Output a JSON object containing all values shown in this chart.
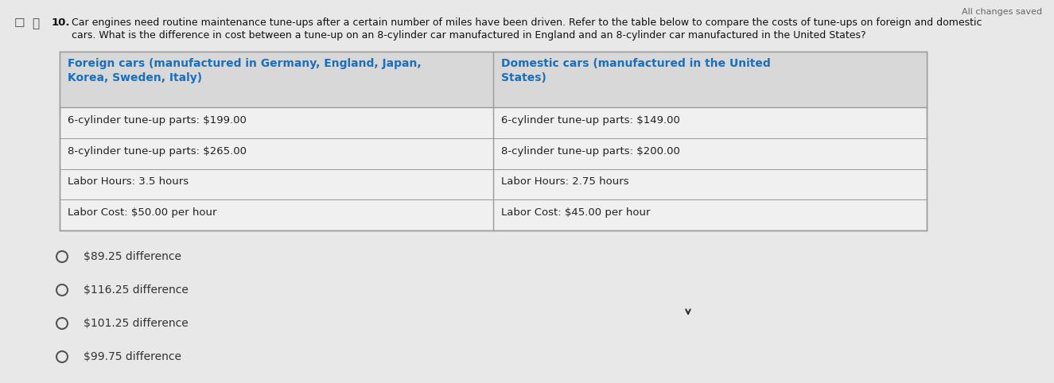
{
  "all_changes_saved": "All changes saved",
  "question_number": "10.",
  "question_text_line1": "Car engines need routine maintenance tune-ups after a certain number of miles have been driven. Refer to the table below to compare the costs of tune-ups on foreign and domestic",
  "question_text_line2": "cars. What is the difference in cost between a tune-up on an 8-cylinder car manufactured in England and an 8-cylinder car manufactured in the United States?",
  "table_header_left": "Foreign cars (manufactured in Germany, England, Japan,\nKorea, Sweden, Italy)",
  "table_header_right": "Domestic cars (manufactured in the United\nStates)",
  "table_rows_left": [
    "6-cylinder tune-up parts: $199.00",
    "8-cylinder tune-up parts: $265.00",
    "Labor Hours: 3.5 hours",
    "Labor Cost: $50.00 per hour"
  ],
  "table_rows_right": [
    "6-cylinder tune-up parts: $149.00",
    "8-cylinder tune-up parts: $200.00",
    "Labor Hours: 2.75 hours",
    "Labor Cost: $45.00 per hour"
  ],
  "answer_choices": [
    "$89.25 difference",
    "$116.25 difference",
    "$101.25 difference",
    "$99.75 difference"
  ],
  "bg_color": "#e8e8e8",
  "table_bg_color": "#f0f0f0",
  "table_header_bg_color": "#d8d8d8",
  "table_border_color": "#999999",
  "header_text_color": "#1a6fbd",
  "row_text_color": "#222222",
  "question_text_color": "#111111",
  "answer_text_color": "#333333",
  "all_changes_color": "#666666"
}
